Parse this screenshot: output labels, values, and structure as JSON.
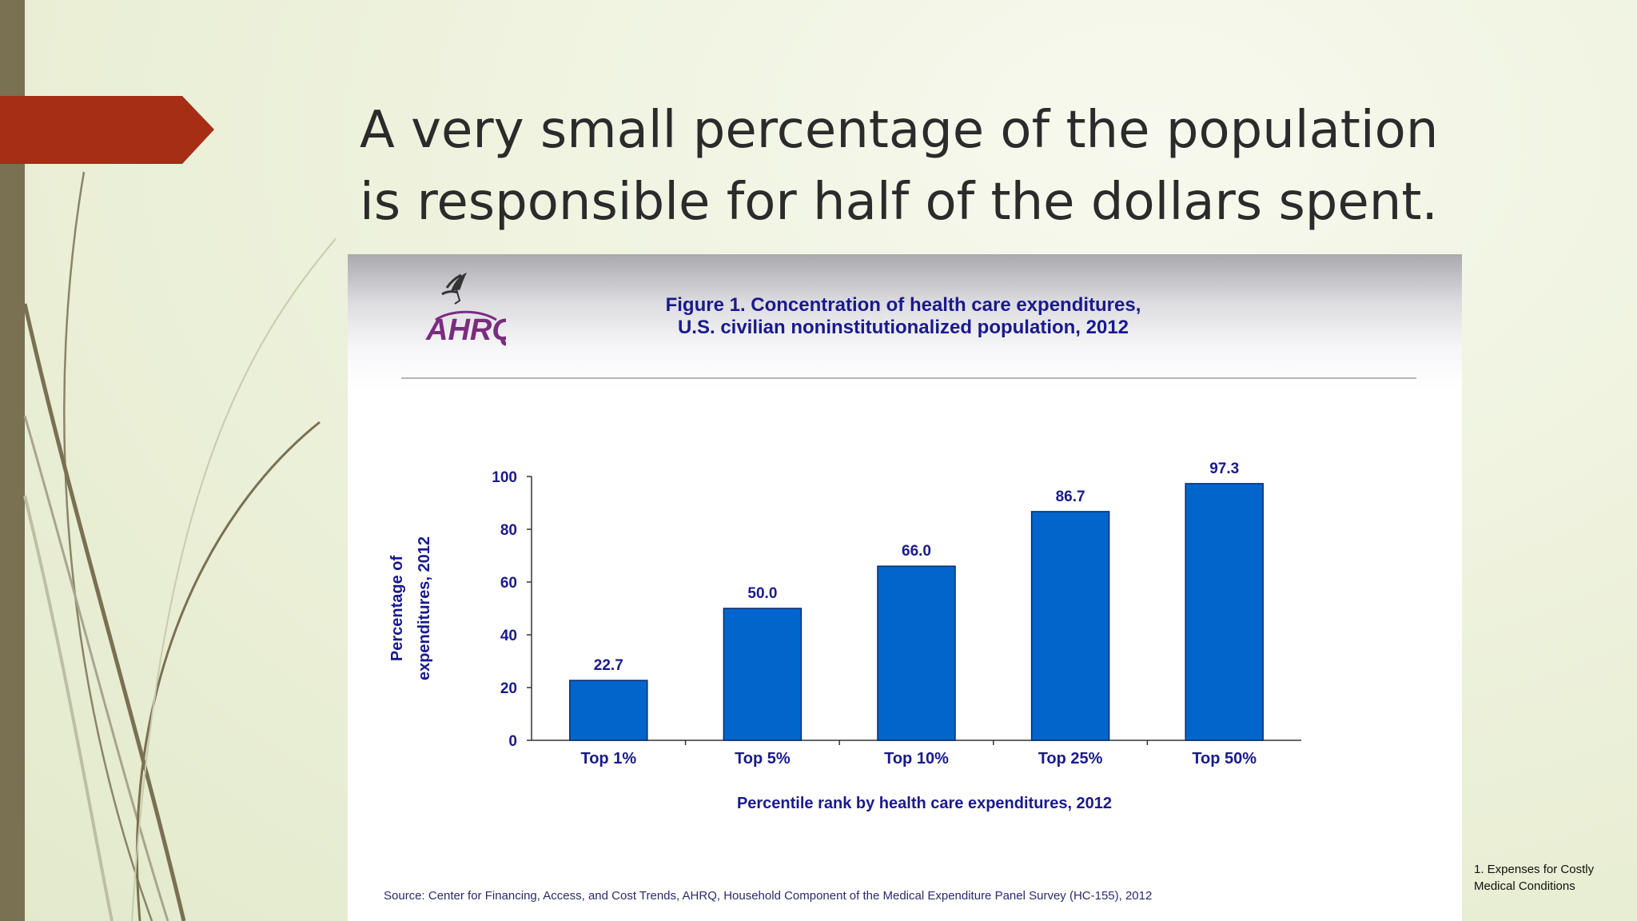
{
  "slide": {
    "title": "A very small percentage of the population is responsible for half of the dollars spent.",
    "footnote_line1": "1. Expenses for Costly",
    "footnote_line2": "Medical Conditions"
  },
  "figure": {
    "logo_text": "AHRQ",
    "title_line1": "Figure 1. Concentration of health care expenditures,",
    "title_line2": "U.S. civilian noninstitutionalized population, 2012",
    "source": "Source: Center for Financing, Access, and Cost Trends, AHRQ, Household Component of the Medical Expenditure Panel Survey (HC-155), 2012"
  },
  "colors": {
    "bar": "#0066cc",
    "text": "#1a1a8c",
    "accent": "#a52e14",
    "side_bar": "#7a7052"
  },
  "chart_data": {
    "type": "bar",
    "categories": [
      "Top 1%",
      "Top 5%",
      "Top 10%",
      "Top 25%",
      "Top 50%"
    ],
    "values": [
      22.7,
      50.0,
      66.0,
      86.7,
      97.3
    ],
    "value_labels": [
      "22.7",
      "50.0",
      "66.0",
      "86.7",
      "97.3"
    ],
    "xlabel": "Percentile rank by health care expenditures, 2012",
    "ylabel_line1": "Percentage of",
    "ylabel_line2": "expenditures, 2012",
    "ylim": [
      0,
      100
    ],
    "yticks": [
      0,
      20,
      40,
      60,
      80,
      100
    ],
    "grid": false,
    "legend": "none"
  }
}
